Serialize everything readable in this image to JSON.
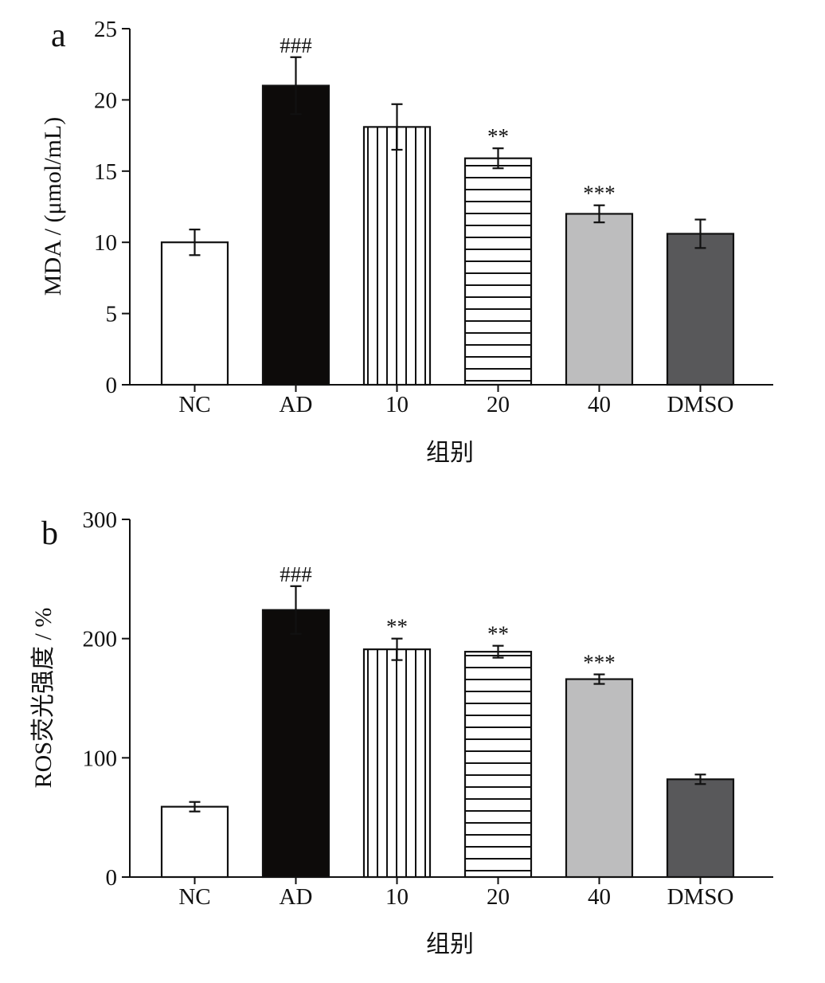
{
  "chart_data": [
    {
      "type": "bar",
      "panel_label": "a",
      "categories": [
        "NC",
        "AD",
        "10",
        "20",
        "40",
        "DMSO"
      ],
      "values": [
        10.0,
        21.0,
        18.1,
        15.9,
        12.0,
        10.6
      ],
      "errors": [
        0.9,
        2.0,
        1.6,
        0.7,
        0.6,
        1.0
      ],
      "annotations": [
        "",
        "###",
        "",
        "**",
        "***",
        ""
      ],
      "fills": [
        "white",
        "black",
        "vertical-lines",
        "horizontal-lines",
        "light-gray",
        "dark-gray"
      ],
      "colors": {
        "black": "#0d0b0a",
        "light_gray": "#bdbdbe",
        "dark_gray": "#58585a"
      },
      "xlabel": "组别",
      "ylabel": "MDA / (μmol/mL)",
      "ylim": [
        0,
        25
      ],
      "yticks": [
        0,
        5,
        10,
        15,
        20,
        25
      ],
      "grid": false,
      "legend": "none"
    },
    {
      "type": "bar",
      "panel_label": "b",
      "categories": [
        "NC",
        "AD",
        "10",
        "20",
        "40",
        "DMSO"
      ],
      "values": [
        59,
        224,
        191,
        189,
        166,
        82
      ],
      "errors": [
        4,
        20,
        9,
        5,
        4,
        4
      ],
      "annotations": [
        "",
        "###",
        "**",
        "**",
        "***",
        ""
      ],
      "fills": [
        "white",
        "black",
        "vertical-lines",
        "horizontal-lines",
        "light-gray",
        "dark-gray"
      ],
      "colors": {
        "black": "#0d0b0a",
        "light_gray": "#bdbdbe",
        "dark_gray": "#58585a"
      },
      "xlabel": "组别",
      "ylabel": "ROS荧光强度 / %",
      "ylim": [
        0,
        300
      ],
      "yticks": [
        0,
        100,
        200,
        300
      ],
      "grid": false,
      "legend": "none"
    }
  ]
}
